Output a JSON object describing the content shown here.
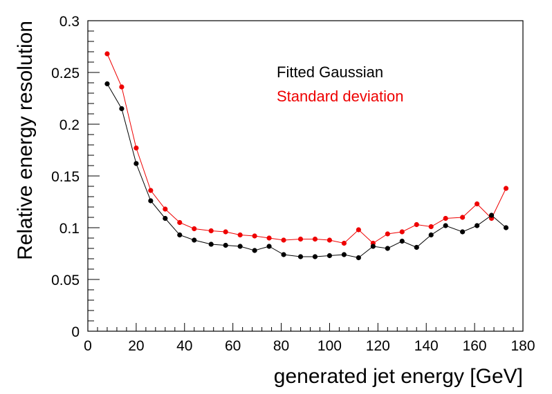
{
  "chart_data": {
    "type": "line",
    "title": "",
    "xlabel": "generated jet energy [GeV]",
    "ylabel": "Relative energy resolution",
    "xlim": [
      0,
      180
    ],
    "ylim": [
      0,
      0.3
    ],
    "xticks": [
      0,
      20,
      40,
      60,
      80,
      100,
      120,
      140,
      160,
      180
    ],
    "yticks": [
      0,
      0.05,
      0.1,
      0.15,
      0.2,
      0.25,
      0.3
    ],
    "xtick_labels": [
      "0",
      "20",
      "40",
      "60",
      "80",
      "100",
      "120",
      "140",
      "160",
      "180"
    ],
    "ytick_labels": [
      "0",
      "0.05",
      "0.1",
      "0.15",
      "0.2",
      "0.25",
      "0.3"
    ],
    "grid": false,
    "legend_position": "top-right",
    "series": [
      {
        "name": "Standard deviation",
        "color": "#ee0000",
        "x": [
          8,
          14,
          20,
          26,
          32,
          38,
          44,
          51,
          57,
          63,
          69,
          75,
          81,
          88,
          94,
          100,
          106,
          112,
          118,
          124,
          130,
          136,
          142,
          148,
          155,
          161,
          167,
          173
        ],
        "y": [
          0.268,
          0.236,
          0.177,
          0.136,
          0.118,
          0.105,
          0.099,
          0.097,
          0.096,
          0.093,
          0.092,
          0.09,
          0.088,
          0.089,
          0.089,
          0.088,
          0.085,
          0.098,
          0.085,
          0.094,
          0.096,
          0.103,
          0.101,
          0.109,
          0.11,
          0.123,
          0.109,
          0.138
        ]
      },
      {
        "name": "Fitted Gaussian",
        "color": "#000000",
        "x": [
          8,
          14,
          20,
          26,
          32,
          38,
          44,
          51,
          57,
          63,
          69,
          75,
          81,
          88,
          94,
          100,
          106,
          112,
          118,
          124,
          130,
          136,
          142,
          148,
          155,
          161,
          167,
          173
        ],
        "y": [
          0.239,
          0.215,
          0.162,
          0.126,
          0.109,
          0.093,
          0.088,
          0.084,
          0.083,
          0.082,
          0.078,
          0.082,
          0.074,
          0.072,
          0.072,
          0.073,
          0.074,
          0.071,
          0.082,
          0.08,
          0.087,
          0.081,
          0.093,
          0.102,
          0.096,
          0.102,
          0.112,
          0.1
        ]
      }
    ],
    "legend": [
      {
        "label": "Fitted Gaussian",
        "color": "#000000"
      },
      {
        "label": "Standard deviation",
        "color": "#ee0000"
      }
    ]
  }
}
